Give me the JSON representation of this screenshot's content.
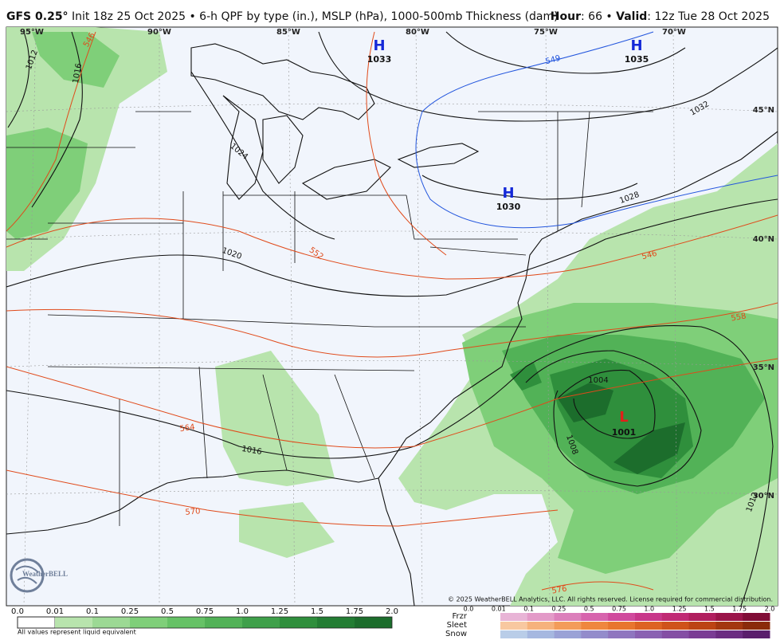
{
  "header": {
    "model": "GFS 0.25°",
    "description": "Init 18z 25 Oct 2025 • 6-h QPF by type (in.), MSLP (hPa), 1000-500mb Thickness (dam)",
    "hour_label": "Hour",
    "hour_value": ": 66 •",
    "valid_label": "Valid",
    "valid_value": ": 12z Tue 28 Oct 2025"
  },
  "map": {
    "longitudes": [
      "95°W",
      "90°W",
      "85°W",
      "80°W",
      "75°W",
      "70°W"
    ],
    "latitudes": [
      "45°N",
      "40°N",
      "35°N",
      "30°N"
    ],
    "pressure_centers": [
      {
        "symbol": "H",
        "value": "1033"
      },
      {
        "symbol": "H",
        "value": "1035"
      },
      {
        "symbol": "H",
        "value": "1030"
      },
      {
        "symbol": "L",
        "value": "1001"
      }
    ],
    "isobar_labels": [
      "1012",
      "1016",
      "1024",
      "1020",
      "1016",
      "1032",
      "1028",
      "1008",
      "1004",
      "1012"
    ],
    "thickness_labels": [
      "546",
      "549",
      "552",
      "546",
      "558",
      "564",
      "570",
      "576"
    ],
    "logo": "WeatherBELL",
    "copyright": "© 2025 WeatherBELL Analytics, LLC. All rights reserved. License required for commercial distribution."
  },
  "legend": {
    "qpf_ticks": [
      "0.0",
      "0.01",
      "0.1",
      "0.25",
      "0.5",
      "0.75",
      "1.0",
      "1.25",
      "1.5",
      "1.75",
      "2.0"
    ],
    "qpf_note": "All values represent liquid equivalent",
    "types": [
      "Frzr",
      "Sleet",
      "Snow"
    ],
    "type_ticks": [
      "0.0",
      "0.01",
      "0.1",
      "0.25",
      "0.5",
      "0.75",
      "1.0",
      "1.25",
      "1.5",
      "1.75",
      "2.0"
    ]
  }
}
